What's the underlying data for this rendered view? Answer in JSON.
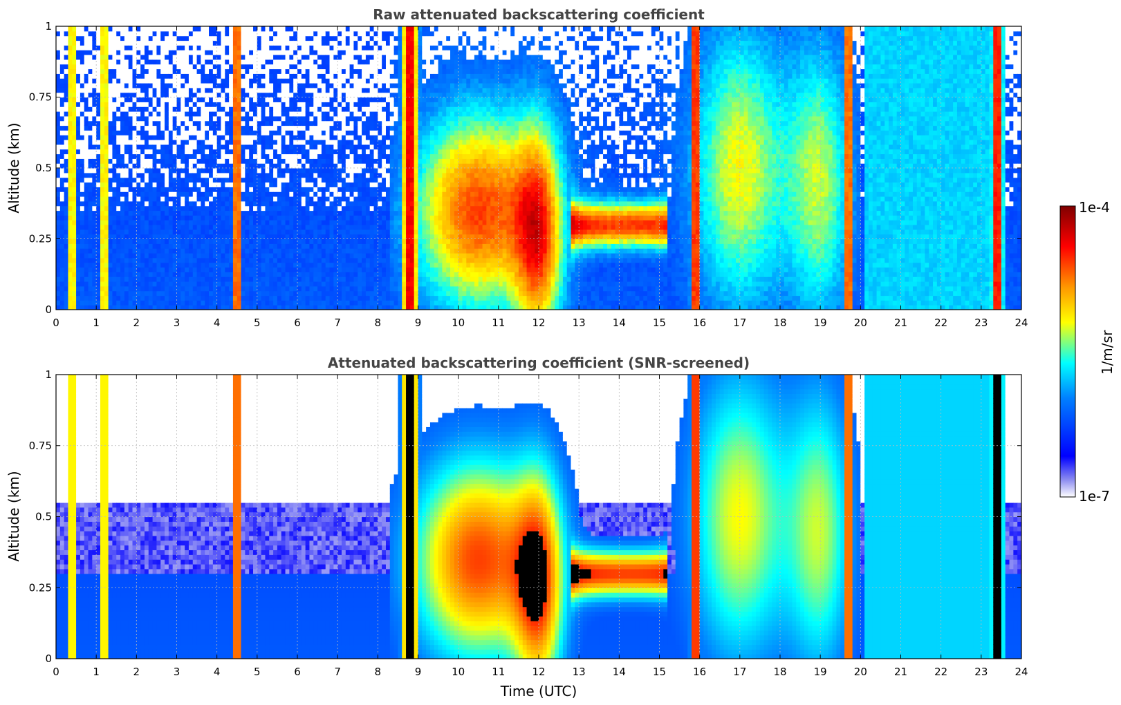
{
  "figure": {
    "x_label": "Time (UTC)",
    "colorbar": {
      "label": "1/m/sr",
      "max_label": "1e-4",
      "min_label": "1e-7",
      "scale": "log",
      "range": [
        1e-07,
        0.0001
      ],
      "colormap": [
        "#e6e6fa",
        "#0000ff",
        "#00ffff",
        "#ffff00",
        "#ff8000",
        "#ff0000",
        "#800000"
      ]
    }
  },
  "chart_data": [
    {
      "type": "heatmap",
      "title": "Raw attenuated backscattering coefficient",
      "xlabel": "",
      "ylabel": "Altitude (km)",
      "xlim": [
        0,
        24
      ],
      "ylim": [
        0,
        1
      ],
      "x_ticks": [
        "0",
        "1",
        "2",
        "3",
        "4",
        "5",
        "6",
        "7",
        "8",
        "9",
        "10",
        "11",
        "12",
        "13",
        "14",
        "15",
        "16",
        "17",
        "18",
        "19",
        "20",
        "21",
        "22",
        "23",
        "24"
      ],
      "y_ticks": [
        "0",
        "0.25",
        "0.5",
        "0.75",
        "1"
      ],
      "grid": true,
      "color_scale": "log 1e-7 to 1e-4 (1/m/sr)",
      "screened": false
    },
    {
      "type": "heatmap",
      "title": "Attenuated backscattering coefficient (SNR-screened)",
      "xlabel": "Time (UTC)",
      "ylabel": "Altitude (km)",
      "xlim": [
        0,
        24
      ],
      "ylim": [
        0,
        1
      ],
      "x_ticks": [
        "0",
        "1",
        "2",
        "3",
        "4",
        "5",
        "6",
        "7",
        "8",
        "9",
        "10",
        "11",
        "12",
        "13",
        "14",
        "15",
        "16",
        "17",
        "18",
        "19",
        "20",
        "21",
        "22",
        "23",
        "24"
      ],
      "y_ticks": [
        "0",
        "0.25",
        "0.5",
        "0.75",
        "1"
      ],
      "grid": true,
      "color_scale": "log 1e-7 to 1e-4 (1/m/sr)",
      "screened": true
    }
  ]
}
